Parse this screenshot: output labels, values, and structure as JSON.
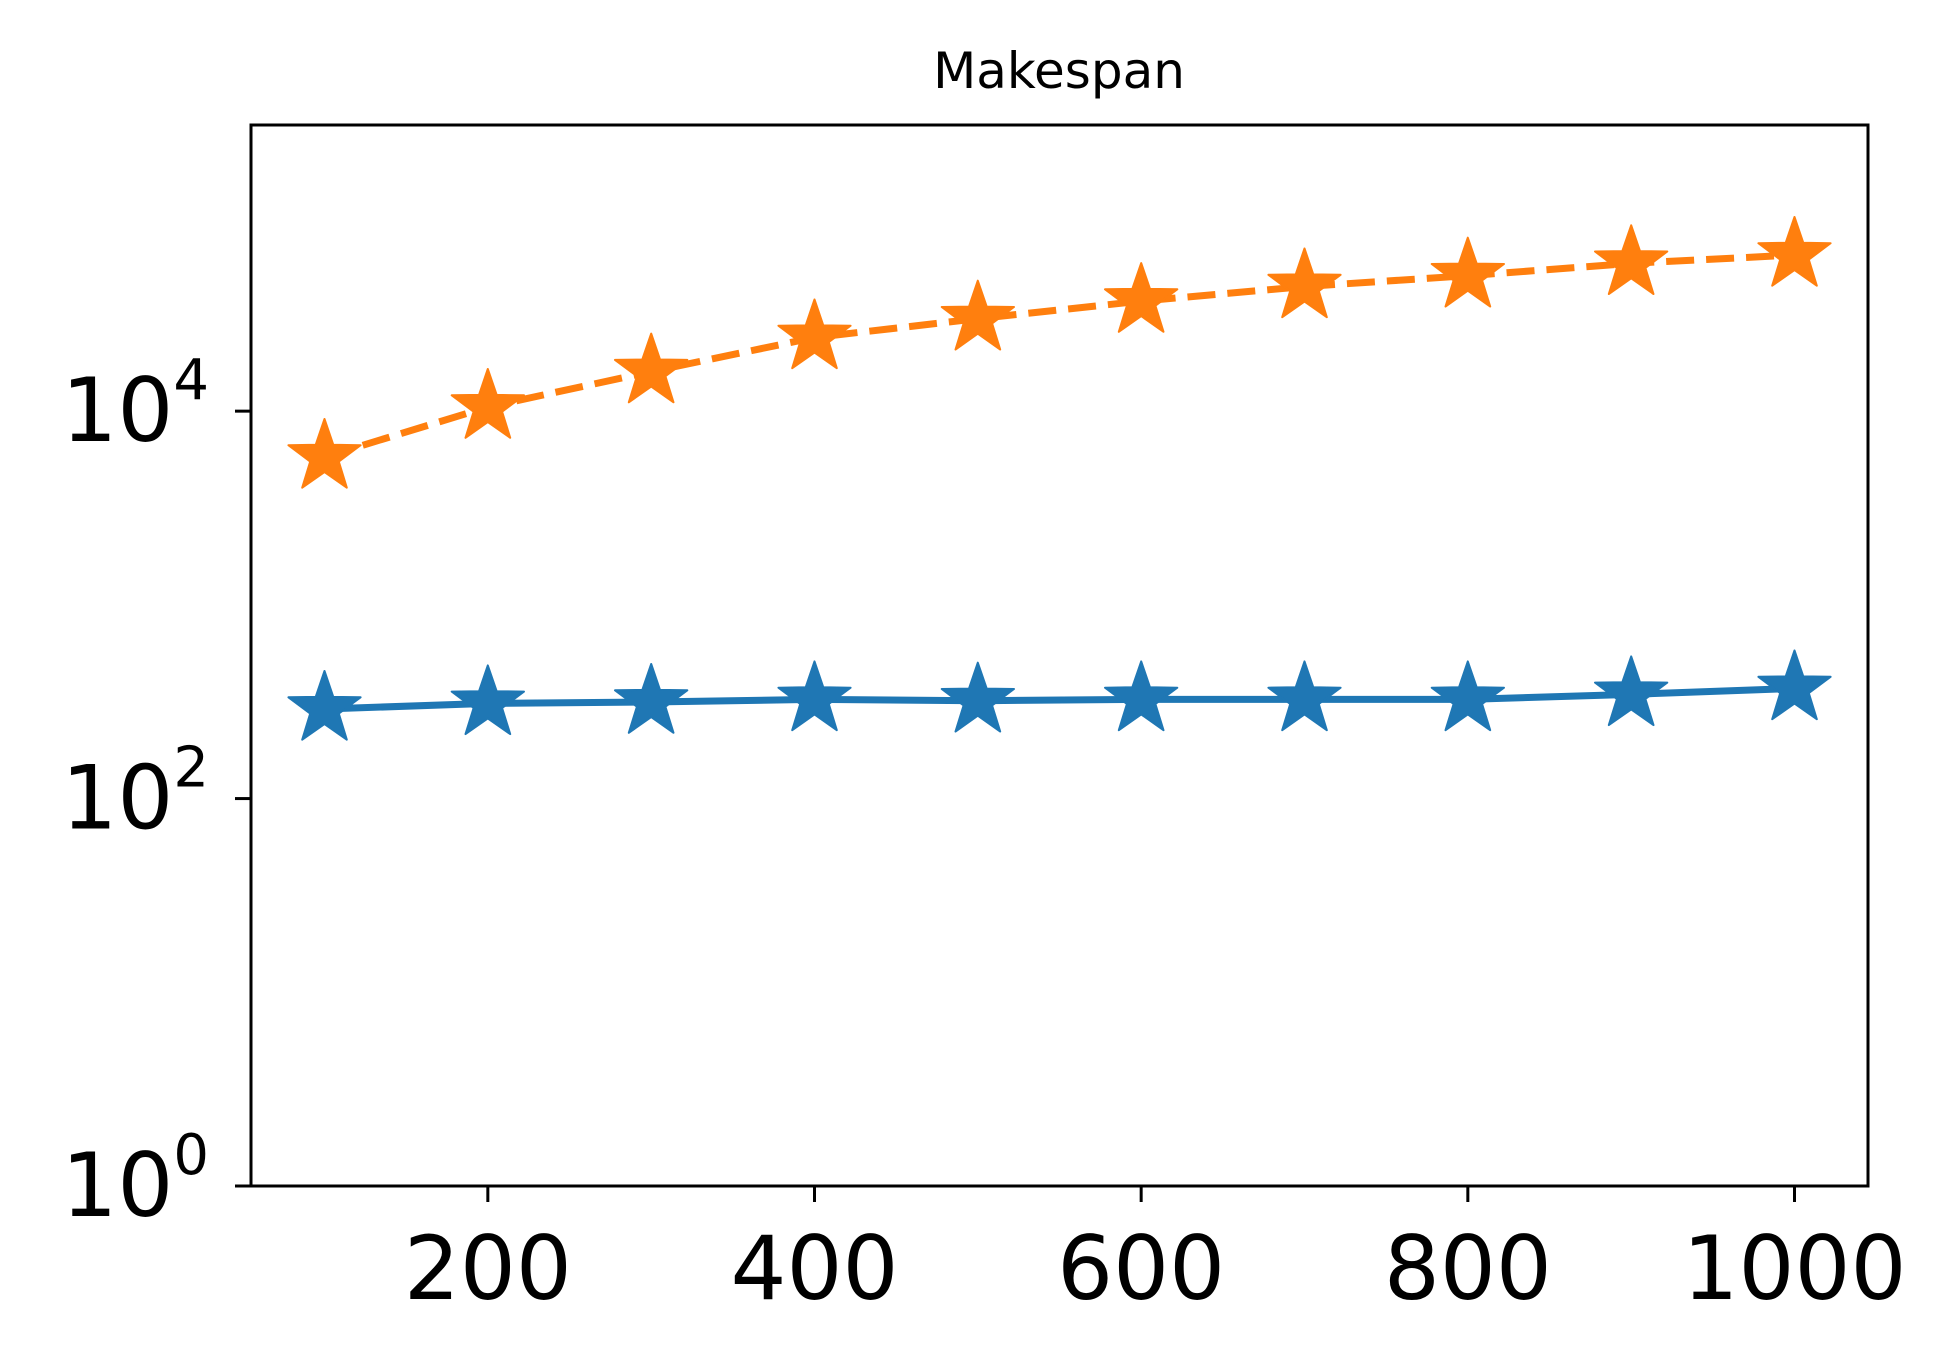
{
  "chart_data": {
    "type": "line",
    "title": "Makespan",
    "xlabel": "",
    "ylabel": "",
    "x": [
      100,
      200,
      300,
      400,
      500,
      600,
      700,
      800,
      900,
      1000
    ],
    "xlim": [
      55,
      1045
    ],
    "ylim": [
      1,
      300000
    ],
    "yscale": "log",
    "x_ticks": [
      200,
      400,
      600,
      800,
      1000
    ],
    "y_ticks": [
      {
        "value": 1,
        "base": "10",
        "exponent": "0"
      },
      {
        "value": 100,
        "base": "10",
        "exponent": "2"
      },
      {
        "value": 10000,
        "base": "10",
        "exponent": "4"
      }
    ],
    "grid": false,
    "legend": "none",
    "series": [
      {
        "line_style": "solid",
        "marker": "star",
        "color": "#1f77b4",
        "values": [
          290,
          310,
          315,
          325,
          320,
          325,
          325,
          325,
          345,
          370
        ]
      },
      {
        "line_style": "dashed",
        "marker": "star",
        "color": "#ff7f0e",
        "values": [
          5800,
          10500,
          16000,
          24000,
          30000,
          37000,
          44000,
          50000,
          58000,
          64000
        ]
      }
    ]
  }
}
